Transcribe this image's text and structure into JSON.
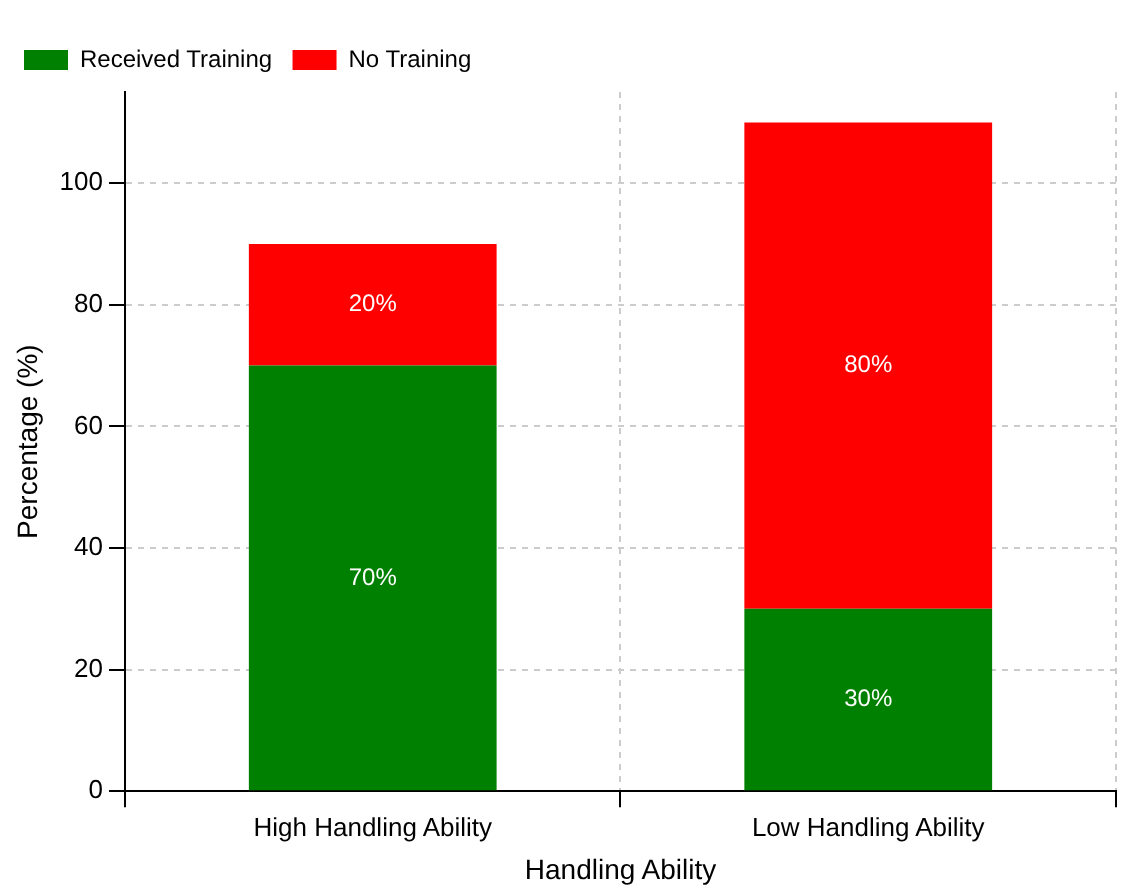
{
  "chart_data": {
    "type": "bar",
    "stacked": true,
    "xlabel": "Handling Ability",
    "ylabel": "Percentage (%)",
    "categories": [
      "High Handling Ability",
      "Low Handling Ability"
    ],
    "series": [
      {
        "name": "Received Training",
        "color": "#008000",
        "values": [
          70,
          30
        ],
        "value_labels": [
          "70%",
          "30%"
        ]
      },
      {
        "name": "No Training",
        "color": "#ff0000",
        "values": [
          20,
          80
        ],
        "value_labels": [
          "20%",
          "80%"
        ]
      }
    ],
    "ylim": [
      0,
      115
    ],
    "yticks": [
      0,
      20,
      40,
      60,
      80,
      100
    ],
    "grid": true,
    "legend": "top left"
  }
}
